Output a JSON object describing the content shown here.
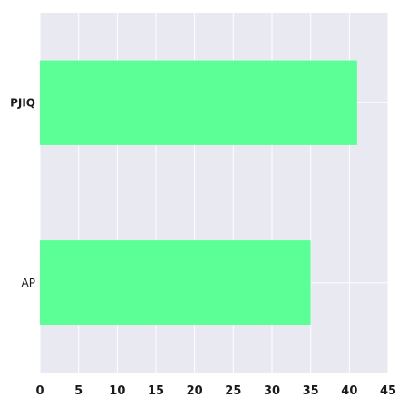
{
  "chart_data": {
    "type": "bar",
    "orientation": "horizontal",
    "categories": [
      "PJIQ",
      "AP"
    ],
    "values": [
      41,
      35
    ],
    "title": "",
    "xlabel": "",
    "ylabel": "",
    "xlim": [
      0,
      45
    ],
    "xticks": [
      0,
      5,
      10,
      15,
      20,
      25,
      30,
      35,
      40,
      45
    ],
    "grid": true,
    "legend": "none",
    "colors": {
      "bar": "#5cff96",
      "background": "#e9e9f2",
      "grid": "#ffffff"
    }
  }
}
